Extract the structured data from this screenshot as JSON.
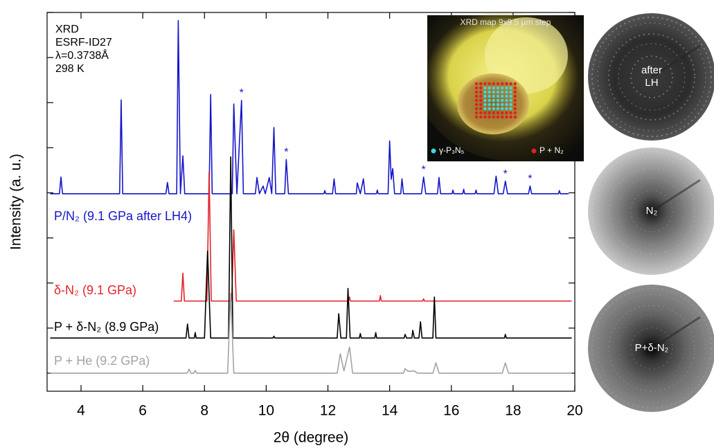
{
  "chart_data": {
    "type": "line",
    "xlabel": "2θ (degree)",
    "ylabel": "Intensity (a. u.)",
    "xlim": [
      2.9,
      20
    ],
    "xticks": [
      4,
      6,
      8,
      10,
      12,
      14,
      16,
      18,
      20
    ],
    "ylim": [
      -0.4,
      8
    ],
    "yticks": [
      0,
      1,
      2,
      3,
      4,
      5,
      6,
      7,
      8
    ],
    "annotations": [
      "XRD",
      "ESRF-ID27",
      "λ=0.3738Å",
      "298 K"
    ],
    "peak_marks": {
      "label": "*",
      "series": 0,
      "x": [
        9.2,
        10.65,
        15.1,
        17.75,
        18.55
      ]
    },
    "series": [
      {
        "name": "P/N₂ (9.1 GPa after LH4)",
        "color": "#1515c8",
        "x": [
          3.0,
          3.3,
          3.35,
          3.4,
          5.25,
          5.3,
          5.35,
          6.75,
          6.8,
          6.85,
          7.1,
          7.15,
          7.22,
          7.3,
          7.36,
          8.15,
          8.2,
          8.25,
          8.9,
          8.95,
          9.05,
          9.2,
          9.26,
          9.65,
          9.7,
          9.78,
          9.9,
          9.97,
          10.1,
          10.18,
          10.25,
          10.31,
          10.6,
          10.65,
          10.72,
          11.87,
          11.9,
          11.93,
          12.15,
          12.2,
          12.25,
          12.92,
          12.95,
          13.05,
          13.15,
          13.2,
          13.57,
          13.6,
          13.63,
          13.95,
          14.0,
          14.05,
          14.1,
          14.16,
          14.36,
          14.4,
          14.45,
          15.03,
          15.1,
          15.17,
          15.55,
          15.6,
          15.65,
          16.02,
          16.05,
          16.08,
          16.37,
          16.4,
          16.43,
          16.77,
          16.8,
          16.83,
          17.38,
          17.45,
          17.52,
          17.68,
          17.75,
          17.82,
          18.5,
          18.55,
          18.6,
          19.47,
          19.5,
          19.53,
          19.8
        ],
        "values": [
          3.98,
          3.98,
          4.35,
          3.98,
          3.98,
          6.06,
          3.98,
          3.98,
          4.23,
          3.98,
          3.98,
          7.82,
          3.98,
          4.82,
          3.98,
          3.98,
          6.18,
          3.98,
          3.98,
          5.97,
          3.98,
          6.05,
          3.98,
          3.98,
          4.34,
          3.98,
          4.15,
          3.98,
          4.34,
          3.98,
          5.45,
          3.98,
          3.98,
          4.74,
          3.98,
          3.98,
          4.05,
          3.98,
          3.98,
          4.31,
          3.98,
          3.98,
          4.22,
          3.98,
          4.31,
          3.98,
          3.98,
          4.06,
          3.98,
          3.98,
          5.15,
          4.3,
          4.54,
          3.98,
          3.98,
          4.31,
          3.98,
          3.98,
          4.35,
          3.98,
          3.98,
          4.34,
          3.98,
          3.98,
          4.06,
          3.98,
          3.98,
          4.08,
          3.98,
          3.98,
          4.06,
          3.98,
          3.98,
          4.37,
          3.98,
          3.98,
          4.26,
          3.98,
          3.98,
          4.15,
          3.98,
          3.98,
          4.05,
          3.98,
          3.98
        ]
      },
      {
        "name": "δ-N₂ (9.1 GPa)",
        "color": "#e3232b",
        "x": [
          7.0,
          7.25,
          7.3,
          7.35,
          8.08,
          8.15,
          8.22,
          8.88,
          8.95,
          9.03,
          12.67,
          12.7,
          12.73,
          13.67,
          13.7,
          13.73,
          15.07,
          15.1,
          15.13,
          19.9
        ],
        "values": [
          1.6,
          1.6,
          2.22,
          1.6,
          1.6,
          4.46,
          1.6,
          1.6,
          3.18,
          1.6,
          1.6,
          1.69,
          1.6,
          1.6,
          1.72,
          1.6,
          1.6,
          1.65,
          1.6,
          1.6
        ]
      },
      {
        "name": "P + δ-N₂ (8.9 GPa)",
        "color": "#000000",
        "x": [
          3.0,
          7.4,
          7.45,
          7.5,
          7.67,
          7.7,
          7.73,
          8.0,
          8.1,
          8.2,
          8.78,
          8.85,
          8.92,
          10.22,
          10.25,
          10.28,
          12.3,
          12.35,
          12.42,
          12.6,
          12.65,
          12.72,
          13.02,
          13.05,
          13.08,
          13.52,
          13.55,
          13.58,
          14.47,
          14.5,
          14.55,
          14.72,
          14.75,
          14.8,
          14.95,
          15.0,
          15.05,
          15.4,
          15.45,
          15.5,
          17.72,
          17.75,
          17.78,
          19.9
        ],
        "values": [
          0.78,
          0.78,
          1.09,
          0.78,
          0.78,
          0.9,
          0.78,
          0.78,
          2.71,
          0.78,
          0.78,
          4.8,
          0.78,
          0.78,
          0.82,
          0.78,
          0.78,
          1.32,
          0.78,
          0.78,
          1.88,
          0.78,
          0.78,
          0.88,
          0.78,
          0.78,
          0.9,
          0.78,
          0.78,
          0.86,
          0.78,
          0.78,
          0.95,
          0.78,
          0.78,
          1.14,
          0.78,
          0.78,
          1.69,
          0.78,
          0.78,
          0.86,
          0.78,
          0.78
        ]
      },
      {
        "name": "P + He (9.2 GPa)",
        "color": "#a3a3a3",
        "x": [
          3.0,
          7.44,
          7.5,
          7.56,
          7.65,
          7.7,
          7.75,
          8.75,
          8.85,
          8.95,
          12.3,
          12.4,
          12.52,
          12.7,
          12.8,
          14.45,
          14.5,
          14.6,
          14.8,
          14.9,
          15.4,
          15.5,
          15.6,
          17.65,
          17.75,
          17.85,
          19.9
        ],
        "values": [
          0,
          0,
          0.09,
          0,
          0,
          0.06,
          0,
          0,
          1.77,
          0,
          0,
          0.43,
          0.05,
          0.58,
          0,
          0,
          0.1,
          0.04,
          0.05,
          0,
          0,
          0.23,
          0,
          0,
          0.23,
          0,
          0
        ]
      }
    ],
    "map_inset": {
      "title": "XRD map 9x9 5 μm step",
      "legend": [
        "γ-P₃N₅",
        "P + N₂"
      ]
    },
    "pattern_images": [
      [
        "after",
        "LH"
      ],
      [
        "N₂"
      ],
      [
        "P+δ-N₂"
      ]
    ]
  }
}
